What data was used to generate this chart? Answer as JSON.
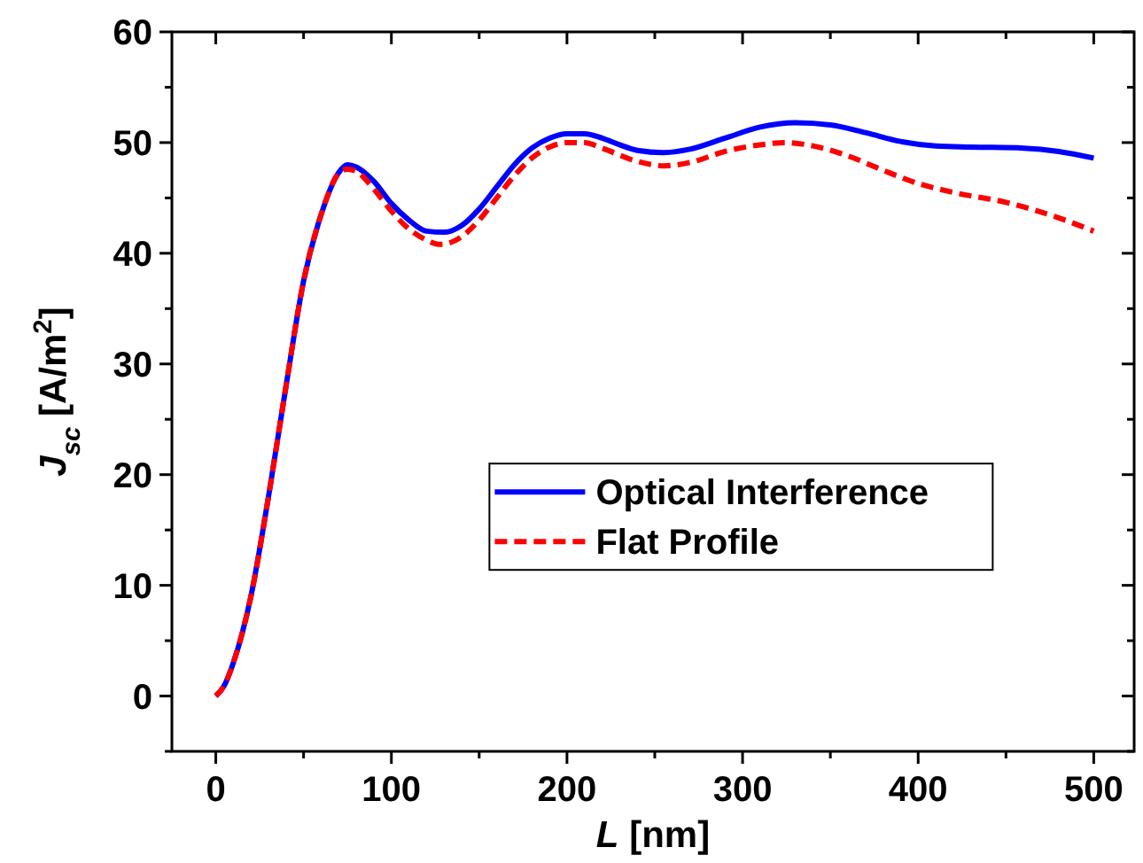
{
  "chart_data": {
    "type": "line",
    "xlabel": "L [nm]",
    "ylabel": "J$_{sc}$ [A/m$^{2}$]",
    "xlim": [
      -25,
      523
    ],
    "ylim": [
      -5,
      60
    ],
    "xticks": [
      0,
      {
        "value": 50,
        "label": null
      },
      100,
      {
        "value": 150,
        "label": null
      },
      200,
      {
        "value": 250,
        "label": null
      },
      300,
      {
        "value": 350,
        "label": null
      },
      400,
      {
        "value": 450,
        "label": null
      },
      500
    ],
    "yticks": [
      {
        "value": -5,
        "label": null
      },
      0,
      {
        "value": 5,
        "label": null
      },
      10,
      {
        "value": 15,
        "label": null
      },
      20,
      {
        "value": 25,
        "label": null
      },
      30,
      {
        "value": 35,
        "label": null
      },
      40,
      {
        "value": 45,
        "label": null
      },
      50,
      {
        "value": 55,
        "label": null
      },
      60
    ],
    "grid": false,
    "legend": "bottom right",
    "marker": "none",
    "series": [
      {
        "name": "Optical Interference",
        "color": "#0000ff",
        "line_style": "solid",
        "x": [
          0,
          5,
          10,
          20,
          30,
          40,
          50,
          60,
          70,
          75,
          80,
          90,
          100,
          110,
          120,
          130,
          140,
          150,
          160,
          170,
          180,
          190,
          200,
          210,
          220,
          230,
          240,
          255,
          270,
          290,
          310,
          330,
          350,
          370,
          390,
          410,
          430,
          460,
          480,
          500
        ],
        "values": [
          0,
          1,
          3,
          9,
          18,
          28,
          37.5,
          43.5,
          47.3,
          48,
          47.8,
          46.5,
          44.5,
          43,
          42,
          41.9,
          42.5,
          44,
          46,
          48,
          49.5,
          50.4,
          50.8,
          50.8,
          50.4,
          49.8,
          49.3,
          49.1,
          49.4,
          50.4,
          51.4,
          51.8,
          51.6,
          50.9,
          50.1,
          49.7,
          49.6,
          49.5,
          49.2,
          48.6
        ]
      },
      {
        "name": "Flat Profile",
        "color": "#ff0000",
        "line_style": "dashed",
        "x": [
          0,
          5,
          10,
          20,
          30,
          40,
          50,
          60,
          70,
          75,
          80,
          90,
          100,
          110,
          120,
          128,
          140,
          150,
          160,
          170,
          180,
          190,
          200,
          210,
          220,
          240,
          255,
          270,
          290,
          310,
          325,
          340,
          360,
          380,
          400,
          420,
          450,
          480,
          500
        ],
        "values": [
          0,
          1,
          3,
          9,
          18,
          28,
          37.5,
          43.5,
          47.2,
          47.6,
          47.4,
          45.8,
          43.8,
          42.2,
          41.2,
          40.8,
          41.5,
          43,
          45,
          47,
          48.6,
          49.6,
          50,
          50,
          49.5,
          48.3,
          47.9,
          48.2,
          49.2,
          49.8,
          50,
          49.7,
          48.8,
          47.5,
          46.3,
          45.5,
          44.6,
          43.2,
          42
        ]
      }
    ]
  }
}
